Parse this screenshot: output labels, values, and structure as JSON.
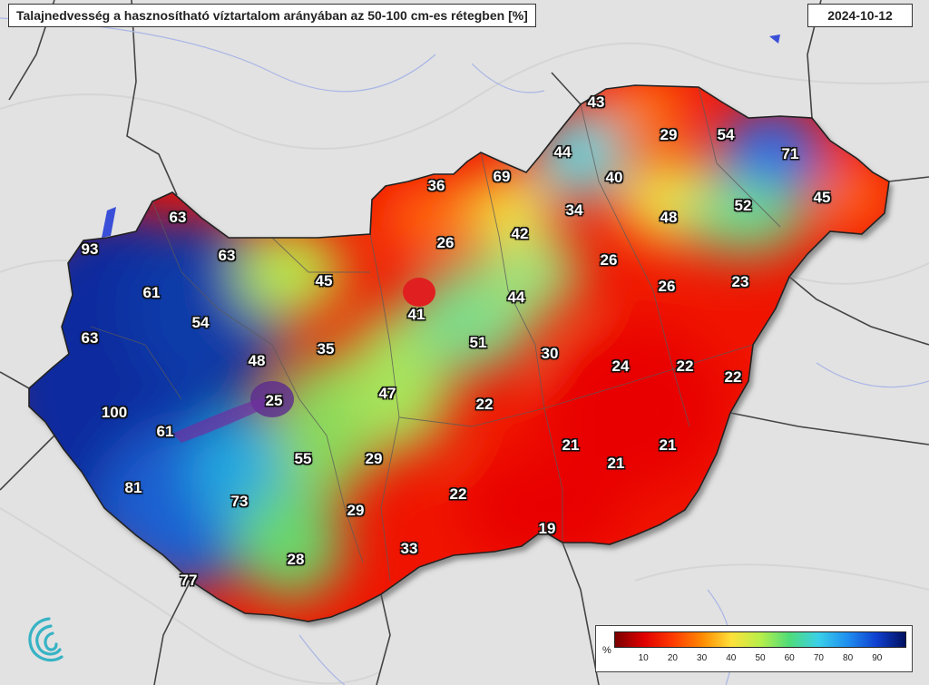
{
  "title": "Talajnedvesség a hasznosítható víztartalom arányában az 50-100 cm-es rétegben [%]",
  "date": "2024-10-12",
  "legend": {
    "unit": "%",
    "min": 0,
    "max": 100,
    "ticks": [
      "10",
      "20",
      "30",
      "40",
      "50",
      "60",
      "70",
      "80",
      "90"
    ],
    "colors": [
      "#7a0000",
      "#e00000",
      "#ff3a00",
      "#ff8a00",
      "#ffe03a",
      "#b8ef4a",
      "#4fdc7a",
      "#3ad0e8",
      "#1f8ff0",
      "#1040d0",
      "#001060"
    ]
  },
  "stations": [
    {
      "value": "43"
    },
    {
      "value": "29"
    },
    {
      "value": "54"
    },
    {
      "value": "71"
    },
    {
      "value": "44"
    },
    {
      "value": "40"
    },
    {
      "value": "69"
    },
    {
      "value": "36"
    },
    {
      "value": "34"
    },
    {
      "value": "45"
    },
    {
      "value": "52"
    },
    {
      "value": "48"
    },
    {
      "value": "63"
    },
    {
      "value": "42"
    },
    {
      "value": "26"
    },
    {
      "value": "93"
    },
    {
      "value": "63"
    },
    {
      "value": "26"
    },
    {
      "value": "45"
    },
    {
      "value": "26"
    },
    {
      "value": "23"
    },
    {
      "value": "61"
    },
    {
      "value": "44"
    },
    {
      "value": "41"
    },
    {
      "value": "54"
    },
    {
      "value": "63"
    },
    {
      "value": "51"
    },
    {
      "value": "35"
    },
    {
      "value": "30"
    },
    {
      "value": "48"
    },
    {
      "value": "24"
    },
    {
      "value": "22"
    },
    {
      "value": "22"
    },
    {
      "value": "47"
    },
    {
      "value": "25"
    },
    {
      "value": "22"
    },
    {
      "value": "100"
    },
    {
      "value": "61"
    },
    {
      "value": "21"
    },
    {
      "value": "21"
    },
    {
      "value": "55"
    },
    {
      "value": "29"
    },
    {
      "value": "21"
    },
    {
      "value": "81"
    },
    {
      "value": "22"
    },
    {
      "value": "73"
    },
    {
      "value": "29"
    },
    {
      "value": "19"
    },
    {
      "value": "33"
    },
    {
      "value": "28"
    },
    {
      "value": "77"
    }
  ]
}
